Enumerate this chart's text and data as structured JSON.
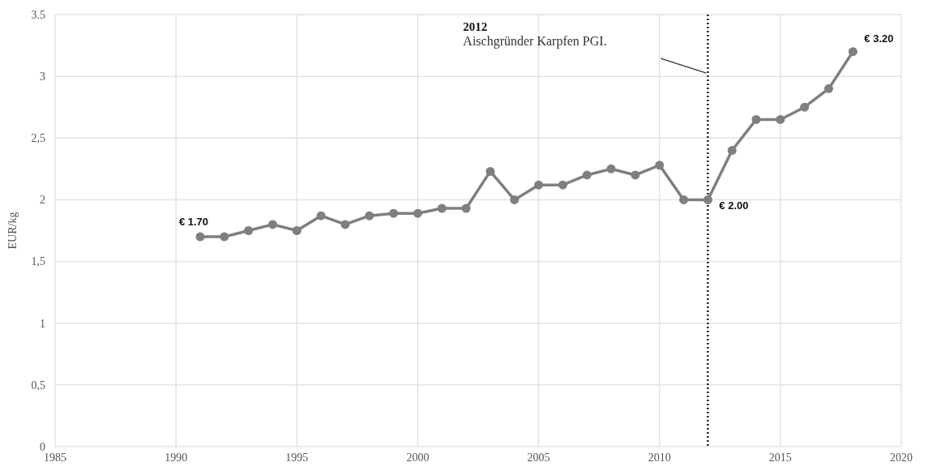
{
  "chart_data": {
    "type": "line",
    "ylabel": "EUR/kg",
    "x": [
      1991,
      1992,
      1993,
      1994,
      1995,
      1996,
      1997,
      1998,
      1999,
      2000,
      2001,
      2002,
      2003,
      2004,
      2005,
      2006,
      2007,
      2008,
      2009,
      2010,
      2011,
      2012,
      2013,
      2014,
      2015,
      2016,
      2017,
      2018
    ],
    "series": [
      {
        "color": "#7f7f7f",
        "values": [
          1.7,
          1.7,
          1.75,
          1.8,
          1.75,
          1.87,
          1.8,
          1.87,
          1.89,
          1.89,
          1.93,
          1.93,
          2.23,
          2.0,
          2.12,
          2.12,
          2.2,
          2.25,
          2.2,
          2.28,
          2.0,
          2.0,
          2.4,
          2.65,
          2.65,
          2.75,
          2.9,
          3.2
        ],
        "value_labels": [
          "€ 1.70",
          null,
          null,
          null,
          null,
          null,
          null,
          null,
          null,
          null,
          null,
          null,
          null,
          null,
          null,
          null,
          null,
          null,
          null,
          null,
          null,
          "€ 2.00",
          null,
          null,
          null,
          null,
          null,
          "€ 3.20"
        ]
      }
    ],
    "xlim": [
      1985,
      2020
    ],
    "xticks": [
      1985,
      1990,
      1995,
      2000,
      2005,
      2010,
      2015,
      2020
    ],
    "ylim": [
      0,
      3.5
    ],
    "yticks": [
      0,
      {
        "value": 0.5,
        "label": "0,5"
      },
      1,
      {
        "value": 1.5,
        "label": "1,5"
      },
      2,
      {
        "value": 2.5,
        "label": "2,5"
      },
      3,
      {
        "value": 3.5,
        "label": "3.5"
      }
    ],
    "ref_lines": [
      {
        "axis": "x",
        "value": 2012,
        "label": "2012",
        "color": "#222222",
        "line_style": "dotted"
      }
    ],
    "annotations": [
      "Aischgründer Karpfen PGI."
    ],
    "grid": true,
    "marker": "circle",
    "line_style": "solid"
  }
}
